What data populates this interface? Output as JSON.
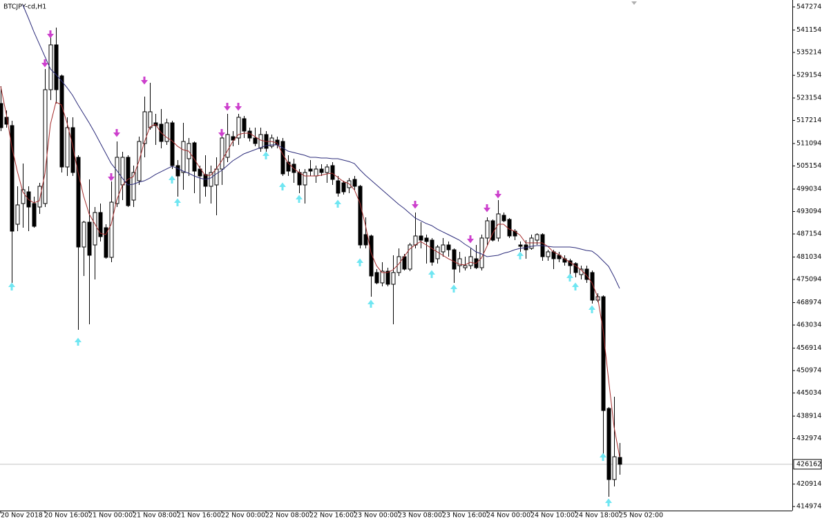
{
  "chart_data": {
    "type": "candlestick",
    "title": "BTCJPY-cd,H1",
    "categories": [
      "20 Nov 2018",
      null,
      null,
      null,
      null,
      null,
      null,
      null,
      "20 Nov 16:00",
      null,
      null,
      null,
      null,
      null,
      null,
      null,
      "21 Nov 00:00",
      null,
      null,
      null,
      null,
      null,
      null,
      null,
      "21 Nov 08:00",
      null,
      null,
      null,
      null,
      null,
      null,
      null,
      "21 Nov 16:00",
      null,
      null,
      null,
      null,
      null,
      null,
      null,
      "22 Nov 00:00",
      null,
      null,
      null,
      null,
      null,
      null,
      null,
      "22 Nov 08:00",
      null,
      null,
      null,
      null,
      null,
      null,
      null,
      "22 Nov 16:00",
      null,
      null,
      null,
      null,
      null,
      null,
      null,
      "23 Nov 00:00",
      null,
      null,
      null,
      null,
      null,
      null,
      null,
      "23 Nov 08:00",
      null,
      null,
      null,
      null,
      null,
      null,
      null,
      "23 Nov 16:00",
      null,
      null,
      null,
      null,
      null,
      null,
      null,
      "24 Nov 00:00",
      null,
      null,
      null,
      null,
      null,
      null,
      null,
      "24 Nov 10:00",
      null,
      null,
      null,
      null,
      null,
      null,
      null,
      "24 Nov 18:00",
      null,
      null,
      null,
      null,
      null,
      null,
      null,
      "25 Nov 02:00"
    ],
    "open": [
      521695,
      518041,
      515849,
      489722,
      495203,
      498309,
      495203,
      494290,
      495203,
      525349,
      537224,
      529003,
      504887,
      515300,
      507444,
      483693,
      490271,
      484241,
      492828,
      488809,
      480953,
      495203,
      500136,
      507444,
      496117,
      501233,
      511098,
      515300,
      516579,
      516214,
      511646,
      516579,
      505252,
      503425,
      507079,
      511281,
      504338,
      502877,
      499771,
      500136,
      504338,
      507444,
      512925,
      512560,
      517676,
      514387,
      512560,
      509819,
      513473,
      510368,
      512012,
      511646,
      506165,
      505617,
      503425,
      500136,
      504338,
      502511,
      504338,
      503425,
      505252,
      501233,
      500684,
      499406,
      501598,
      499771,
      486982,
      486617,
      476933,
      474193,
      477299,
      473828,
      476933,
      481136,
      477847,
      484241,
      486617,
      486068,
      485520,
      480587,
      482414,
      484241,
      482963,
      478760,
      478212,
      478760,
      480587,
      478212,
      486068,
      490636,
      486068,
      492098,
      491001,
      487895,
      484241,
      484241,
      483328,
      485520,
      486982,
      481136,
      482414,
      481501,
      480587,
      480039,
      479309,
      476385,
      477847,
      476933,
      469625,
      470539,
      440942,
      422123,
      427970
    ],
    "high": [
      526262,
      519868,
      517127,
      499771,
      505800,
      499771,
      497030,
      500684,
      530830,
      540878,
      541792,
      529368,
      518041,
      518041,
      507992,
      490636,
      501598,
      494290,
      495203,
      489722,
      501050,
      511646,
      508906,
      507992,
      505252,
      512925,
      523522,
      527176,
      518954,
      520233,
      517676,
      517127,
      506714,
      516579,
      512560,
      511646,
      505252,
      507992,
      505252,
      507444,
      514387,
      518954,
      514387,
      518954,
      518406,
      515300,
      515300,
      515300,
      514387,
      513473,
      512925,
      512560,
      507992,
      507079,
      504338,
      504338,
      506714,
      505252,
      505617,
      505617,
      506165,
      502511,
      501233,
      501963,
      502511,
      500136,
      491549,
      486982,
      477847,
      479674,
      478212,
      481501,
      483328,
      481866,
      484790,
      492828,
      490271,
      486982,
      486068,
      484241,
      486068,
      485155,
      483328,
      482414,
      481136,
      483328,
      484241,
      486982,
      491549,
      491001,
      496117,
      492828,
      491367,
      488444,
      485155,
      485520,
      486982,
      487347,
      487347,
      482963,
      482963,
      482414,
      481501,
      480587,
      479674,
      478760,
      478760,
      477482,
      471452,
      470904,
      441307,
      444047,
      431807
    ],
    "low": [
      514387,
      515300,
      474193,
      487895,
      488809,
      487895,
      488809,
      492463,
      494290,
      522608,
      521695,
      503425,
      502511,
      502511,
      461769,
      476020,
      463231,
      475106,
      485155,
      480587,
      479674,
      494290,
      496117,
      494290,
      494290,
      500136,
      507444,
      514752,
      510733,
      509819,
      510733,
      504338,
      497030,
      498857,
      502511,
      497944,
      495203,
      497030,
      495203,
      492098,
      500136,
      506165,
      510368,
      510733,
      512560,
      511646,
      510368,
      508906,
      508906,
      509819,
      509819,
      502511,
      502511,
      500684,
      497944,
      495203,
      502511,
      500684,
      502511,
      500684,
      500136,
      497030,
      497579,
      497944,
      498857,
      483328,
      483328,
      470539,
      473828,
      473279,
      473279,
      463231,
      476020,
      477482,
      477299,
      483328,
      483328,
      479309,
      478760,
      479309,
      481136,
      481136,
      474193,
      476933,
      477482,
      477847,
      477847,
      477482,
      484241,
      485155,
      485155,
      490271,
      486068,
      485520,
      482414,
      480587,
      482963,
      484241,
      480039,
      480039,
      477847,
      479674,
      478760,
      476385,
      475655,
      475106,
      474193,
      468712,
      469077,
      428518,
      417556,
      420296,
      423402
    ],
    "close": [
      515300,
      516214,
      487895,
      494838,
      498857,
      494290,
      489174,
      499771,
      525349,
      537224,
      525349,
      504887,
      515300,
      503425,
      483693,
      490271,
      481501,
      492828,
      486434,
      480953,
      495569,
      507444,
      507444,
      494655,
      503425,
      511646,
      519503,
      519503,
      515849,
      511646,
      516579,
      505252,
      502511,
      511646,
      511098,
      503790,
      502511,
      499771,
      503425,
      504338,
      512560,
      513473,
      512012,
      518041,
      514387,
      512560,
      511098,
      513473,
      509819,
      512560,
      510733,
      503060,
      503790,
      503425,
      500136,
      503425,
      503790,
      504338,
      503425,
      504887,
      501598,
      497944,
      498309,
      501233,
      499771,
      484241,
      484241,
      476020,
      474193,
      477299,
      473828,
      476933,
      481136,
      477847,
      484241,
      486617,
      485520,
      485155,
      479674,
      483693,
      484241,
      482963,
      477847,
      480587,
      478760,
      481136,
      478212,
      486068,
      490636,
      485520,
      492463,
      490636,
      486617,
      486617,
      483876,
      482963,
      486068,
      486982,
      481136,
      482414,
      480587,
      480587,
      479674,
      478760,
      476933,
      477847,
      475106,
      469625,
      470539,
      440393,
      422123,
      428153,
      426162
    ],
    "up_color": "#ffffff",
    "down_color": "#000000",
    "moving_averages": [
      {
        "color": "#a52a2a",
        "values": [
          526260,
          518950,
          510370,
          503790,
          498310,
          496300,
          495390,
          495930,
          503060,
          516210,
          522060,
          521330,
          516580,
          510730,
          503430,
          497210,
          492460,
          489910,
          487350,
          486980,
          489720,
          496120,
          499950,
          501600,
          502330,
          506350,
          511460,
          515480,
          516210,
          514020,
          512740,
          511830,
          510370,
          509450,
          509090,
          507080,
          504700,
          502690,
          502690,
          504340,
          506530,
          509090,
          511650,
          513470,
          513840,
          513840,
          512930,
          512010,
          511650,
          511650,
          511280,
          508360,
          505980,
          504520,
          503430,
          502510,
          502510,
          502510,
          502690,
          503060,
          503240,
          502150,
          501050,
          500500,
          498860,
          495390,
          489540,
          482230,
          478760,
          476930,
          476930,
          477660,
          479130,
          481140,
          483150,
          484240,
          485160,
          484240,
          483330,
          482410,
          481500,
          480590,
          479860,
          479130,
          478940,
          479670,
          479310,
          480770,
          483880,
          487170,
          489720,
          489720,
          488440,
          487900,
          486800,
          484790,
          484790,
          484790,
          484790,
          483880,
          482410,
          481690,
          480590,
          479670,
          478760,
          477660,
          476200,
          474190,
          470540,
          461770,
          448620,
          436010,
          428150
        ]
      },
      {
        "color": "#2b2b7a",
        "values": [
          null,
          null,
          null,
          null,
          547820,
          544350,
          540700,
          537410,
          534120,
          530830,
          529370,
          527720,
          525900,
          523890,
          521330,
          518950,
          516580,
          514020,
          511280,
          508540,
          505800,
          503970,
          501960,
          500140,
          500320,
          500870,
          501230,
          501960,
          502880,
          503610,
          504340,
          505070,
          504520,
          503790,
          503240,
          502510,
          501960,
          501600,
          501960,
          503060,
          503970,
          505250,
          506530,
          507440,
          508360,
          508910,
          509450,
          510000,
          510550,
          510730,
          510730,
          510000,
          509090,
          508720,
          508360,
          507990,
          507440,
          507440,
          507260,
          507260,
          507080,
          507080,
          506710,
          506350,
          505800,
          504160,
          502690,
          501420,
          500140,
          498860,
          497580,
          496300,
          495020,
          493930,
          492650,
          491370,
          490640,
          489910,
          489360,
          488440,
          487710,
          486980,
          486250,
          485520,
          484420,
          483510,
          482410,
          481870,
          481140,
          481320,
          481500,
          482050,
          482410,
          482960,
          483330,
          483510,
          483880,
          484060,
          484060,
          483880,
          483690,
          483690,
          483690,
          483690,
          483510,
          483150,
          482780,
          482600,
          481500,
          480040,
          478580,
          475840,
          472730
        ]
      }
    ],
    "sell_arrows": {
      "color": "#cc3fcc",
      "values": [
        null,
        null,
        null,
        null,
        null,
        null,
        null,
        null,
        532290,
        539970,
        null,
        null,
        null,
        null,
        null,
        null,
        null,
        null,
        null,
        null,
        502150,
        513840,
        null,
        null,
        null,
        null,
        527720,
        null,
        null,
        null,
        null,
        null,
        null,
        null,
        null,
        null,
        null,
        null,
        null,
        null,
        513840,
        520780,
        null,
        520780,
        null,
        null,
        null,
        null,
        null,
        null,
        null,
        null,
        null,
        null,
        null,
        null,
        null,
        null,
        null,
        null,
        null,
        null,
        null,
        null,
        null,
        null,
        null,
        null,
        null,
        null,
        null,
        null,
        null,
        null,
        null,
        494840,
        null,
        null,
        null,
        null,
        null,
        null,
        null,
        null,
        null,
        485700,
        null,
        null,
        493930,
        null,
        497580,
        null,
        null,
        null,
        null,
        null,
        null,
        null,
        null,
        null,
        null,
        null,
        null,
        null,
        null,
        null,
        null,
        null,
        null,
        null,
        null,
        null,
        null
      ]
    },
    "buy_arrows": {
      "color": "#6fe6f2",
      "values": [
        null,
        null,
        473280,
        null,
        null,
        null,
        null,
        null,
        null,
        null,
        null,
        null,
        null,
        null,
        458660,
        null,
        null,
        null,
        null,
        null,
        null,
        null,
        null,
        null,
        null,
        null,
        null,
        null,
        null,
        null,
        null,
        501600,
        495570,
        null,
        null,
        null,
        null,
        null,
        null,
        null,
        null,
        null,
        null,
        null,
        null,
        null,
        null,
        null,
        507990,
        null,
        null,
        499770,
        null,
        null,
        496480,
        null,
        null,
        null,
        null,
        null,
        null,
        495200,
        null,
        null,
        null,
        479670,
        null,
        468710,
        null,
        null,
        null,
        null,
        null,
        null,
        null,
        null,
        null,
        null,
        476570,
        null,
        null,
        null,
        472730,
        null,
        null,
        null,
        null,
        null,
        null,
        null,
        null,
        null,
        null,
        null,
        481500,
        null,
        null,
        null,
        null,
        null,
        null,
        null,
        null,
        475660,
        473280,
        null,
        null,
        467250,
        null,
        428150,
        416090,
        null,
        null
      ]
    },
    "last_price": 426162,
    "ylim": [
      413900,
      549100
    ],
    "yticks": [
      547274,
      541154,
      535214,
      529154,
      523154,
      517214,
      511094,
      505154,
      499034,
      493094,
      487154,
      481034,
      475094,
      468974,
      463034,
      456914,
      450974,
      445034,
      438914,
      432974,
      420914,
      414974
    ]
  }
}
